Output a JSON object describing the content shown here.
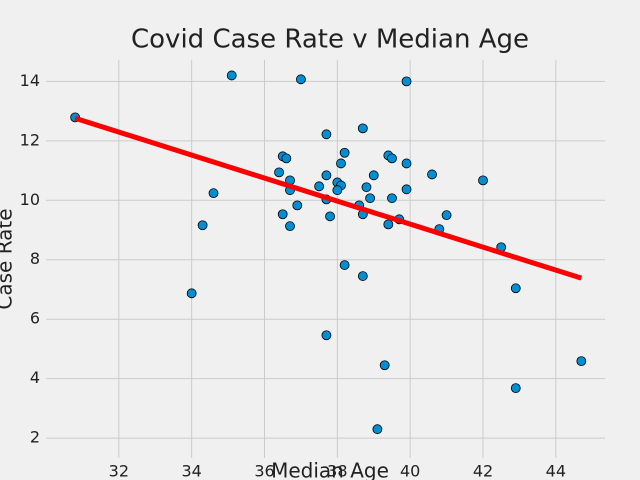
{
  "chart_data": {
    "type": "scatter",
    "title": "Covid Case Rate v Median Age",
    "x_label": "Median Age",
    "y_label": "Case Rate",
    "xlim": [
      30.0,
      45.35
    ],
    "ylim": [
      1.33,
      14.72
    ],
    "xticks": [
      32,
      34,
      36,
      38,
      40,
      42,
      44
    ],
    "yticks": [
      2,
      4,
      6,
      8,
      10,
      12,
      14
    ],
    "grid": true,
    "background": "#f0f0f0",
    "series": [
      {
        "color": "#008fd5",
        "x": [
          30.8,
          35.1,
          37.0,
          39.9,
          34.6,
          34.3,
          34.0,
          37.7,
          38.7,
          38.2,
          36.5,
          36.6,
          38.1,
          39.4,
          39.5,
          39.9,
          36.4,
          36.7,
          37.7,
          39.0,
          40.6,
          42.0,
          37.5,
          38.0,
          38.1,
          38.0,
          38.8,
          39.9,
          36.7,
          37.7,
          38.9,
          39.5,
          36.9,
          38.6,
          36.5,
          37.8,
          38.7,
          41.0,
          39.7,
          39.4,
          36.7,
          40.8,
          42.5,
          38.2,
          38.7,
          42.9,
          37.7,
          39.3,
          44.7,
          42.9,
          39.1
        ],
        "y": [
          12.79,
          14.2,
          14.07,
          14.0,
          10.24,
          9.16,
          6.87,
          12.22,
          12.42,
          11.6,
          11.48,
          11.41,
          11.24,
          11.51,
          11.41,
          11.24,
          10.94,
          10.67,
          10.84,
          10.84,
          10.87,
          10.67,
          10.47,
          10.6,
          10.5,
          10.34,
          10.44,
          10.37,
          10.34,
          10.03,
          10.07,
          10.07,
          9.83,
          9.83,
          9.53,
          9.46,
          9.53,
          9.5,
          9.36,
          9.19,
          9.13,
          9.03,
          8.42,
          7.82,
          7.45,
          7.04,
          5.46,
          4.45,
          4.59,
          3.68,
          2.3
        ]
      }
    ],
    "trend_line": {
      "color": "#ff0000",
      "x": [
        30.8,
        44.7
      ],
      "y": [
        12.76,
        7.38
      ]
    }
  }
}
